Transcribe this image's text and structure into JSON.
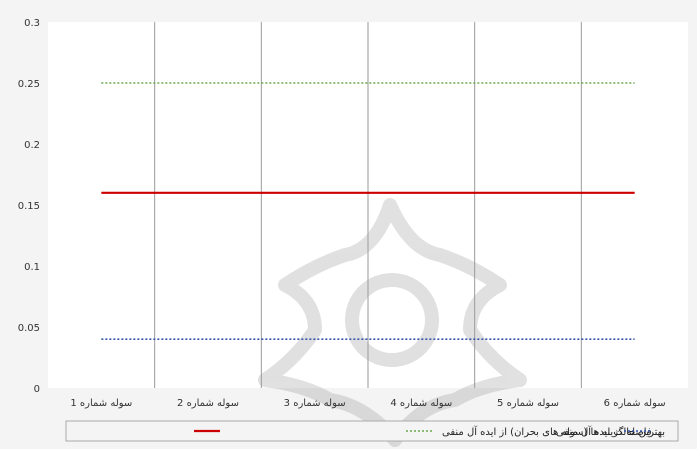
{
  "chart_data": {
    "type": "line",
    "categories": [
      "سوله شماره 1",
      "سوله شماره 2",
      "سوله شماره 3",
      "سوله شماره 4",
      "سوله شماره 5",
      "سوله شماره 6"
    ],
    "ylim": [
      0,
      0.3
    ],
    "yticks": [
      "0",
      "0.05",
      "0.1",
      "0.15",
      "0.2",
      "0.25",
      "0.3"
    ],
    "grid": "vertical",
    "legend_position": "bottom",
    "series": [
      {
        "name": "فاصله گزینه ها (سوله های بحران) از ایده آل منفی",
        "values": [
          0.16,
          0.16,
          0.16,
          0.16,
          0.16,
          0.16
        ],
        "color": "#cc0000",
        "style": "solid"
      },
      {
        "name": "بهترین حالت ایده آل منفی",
        "values": [
          0.25,
          0.25,
          0.25,
          0.25,
          0.25,
          0.25
        ],
        "color": "#6aa84f",
        "style": "dotted"
      },
      {
        "name": "بدترین حالت ایده آل منفی",
        "values": [
          0.04,
          0.04,
          0.04,
          0.04,
          0.04,
          0.04
        ],
        "color": "#3355aa",
        "style": "dotted"
      }
    ],
    "watermark": "ornament-logo"
  }
}
